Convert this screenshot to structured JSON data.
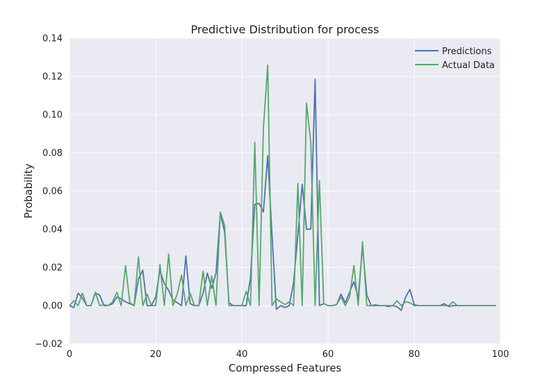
{
  "chart_data": {
    "type": "line",
    "title": "Predictive Distribution for process",
    "xlabel": "Compressed Features",
    "ylabel": "Probability",
    "xlim": [
      0,
      100
    ],
    "ylim": [
      -0.02,
      0.14
    ],
    "xticks": [
      0,
      20,
      40,
      60,
      80,
      100
    ],
    "yticks": [
      -0.02,
      0.0,
      0.02,
      0.04,
      0.06,
      0.08,
      0.1,
      0.12,
      0.14
    ],
    "xtick_labels": [
      "0",
      "20",
      "40",
      "60",
      "80",
      "100"
    ],
    "ytick_labels": [
      "−0.02",
      "0.00",
      "0.02",
      "0.04",
      "0.06",
      "0.08",
      "0.10",
      "0.12",
      "0.14"
    ],
    "grid": true,
    "legend_position": "top-right",
    "x": [
      0,
      1,
      2,
      3,
      4,
      5,
      6,
      7,
      8,
      9,
      10,
      11,
      12,
      13,
      14,
      15,
      16,
      17,
      18,
      19,
      20,
      21,
      22,
      23,
      24,
      25,
      26,
      27,
      28,
      29,
      30,
      31,
      32,
      33,
      34,
      35,
      36,
      37,
      38,
      39,
      40,
      41,
      42,
      43,
      44,
      45,
      46,
      47,
      48,
      49,
      50,
      51,
      52,
      53,
      54,
      55,
      56,
      57,
      58,
      59,
      60,
      61,
      62,
      63,
      64,
      65,
      66,
      67,
      68,
      69,
      70,
      71,
      72,
      73,
      74,
      75,
      76,
      77,
      78,
      79,
      80,
      81,
      82,
      83,
      84,
      85,
      86,
      87,
      88,
      89,
      90,
      91,
      92,
      93,
      94,
      95,
      96,
      97,
      98,
      99
    ],
    "series": [
      {
        "name": "Predictions",
        "color": "#4c72b0",
        "values": [
          0.0,
          -0.001,
          0.0065,
          0.004,
          0.0,
          0.0,
          0.0065,
          0.0055,
          0.0,
          0.0,
          0.001,
          0.0045,
          0.0035,
          0.002,
          0.001,
          0.0,
          0.014,
          0.0185,
          0.0,
          0.0,
          0.0045,
          0.0185,
          0.0115,
          0.008,
          0.003,
          0.0015,
          0.0,
          0.026,
          0.001,
          0.0,
          0.0,
          0.0065,
          0.017,
          0.009,
          0.017,
          0.0485,
          0.0385,
          0.0015,
          0.0,
          0.0,
          0.0,
          0.0,
          0.0145,
          0.053,
          0.0535,
          0.049,
          0.0785,
          0.037,
          -0.002,
          0.0,
          -0.001,
          0.0,
          0.012,
          0.037,
          0.0635,
          0.04,
          0.04,
          0.1185,
          0.0,
          0.001,
          0.0,
          0.0,
          0.0005,
          0.006,
          0.0015,
          0.007,
          0.0125,
          0.004,
          0.031,
          0.0055,
          0.0,
          0.0,
          0.0,
          0.0,
          -0.0005,
          0.0,
          -0.0005,
          -0.0025,
          0.0045,
          0.0085,
          0.0005,
          0.0,
          0.0,
          0.0,
          0.0,
          0.0,
          0.0,
          0.001,
          -0.0005,
          0.0,
          0.0,
          0.0,
          0.0,
          0.0,
          0.0,
          0.0,
          0.0,
          0.0,
          0.0,
          0.0
        ]
      },
      {
        "name": "Actual Data",
        "color": "#55a868",
        "values": [
          0.0,
          0.0025,
          0.0,
          0.0065,
          0.0,
          0.0,
          0.007,
          0.0,
          0.0005,
          0.0,
          0.002,
          0.007,
          0.0,
          0.021,
          0.0015,
          0.0,
          0.0255,
          0.0,
          0.006,
          0.0,
          0.0,
          0.0215,
          0.0,
          0.027,
          0.0,
          0.006,
          0.016,
          0.0,
          0.0065,
          0.0,
          0.0,
          0.018,
          0.0,
          0.0155,
          0.0,
          0.049,
          0.042,
          0.0,
          0.0,
          0.0,
          0.0,
          0.0075,
          0.0,
          0.0855,
          0.0,
          0.093,
          0.126,
          0.0,
          0.0035,
          0.002,
          0.0005,
          0.002,
          0.0,
          0.064,
          0.0,
          0.106,
          0.0855,
          0.0,
          0.0655,
          0.001,
          0.0,
          0.0,
          0.0005,
          0.0045,
          0.0,
          0.0045,
          0.021,
          0.0,
          0.0335,
          0.0,
          0.0,
          0.0005,
          0.0,
          0.0,
          0.0,
          0.0,
          0.0025,
          0.0,
          0.002,
          0.0015,
          0.0,
          0.0,
          0.0,
          0.0,
          0.0,
          0.0,
          0.0,
          0.0,
          0.0,
          0.002,
          0.0,
          0.0,
          0.0,
          0.0,
          0.0,
          0.0,
          0.0,
          0.0,
          0.0,
          0.0
        ]
      }
    ]
  }
}
